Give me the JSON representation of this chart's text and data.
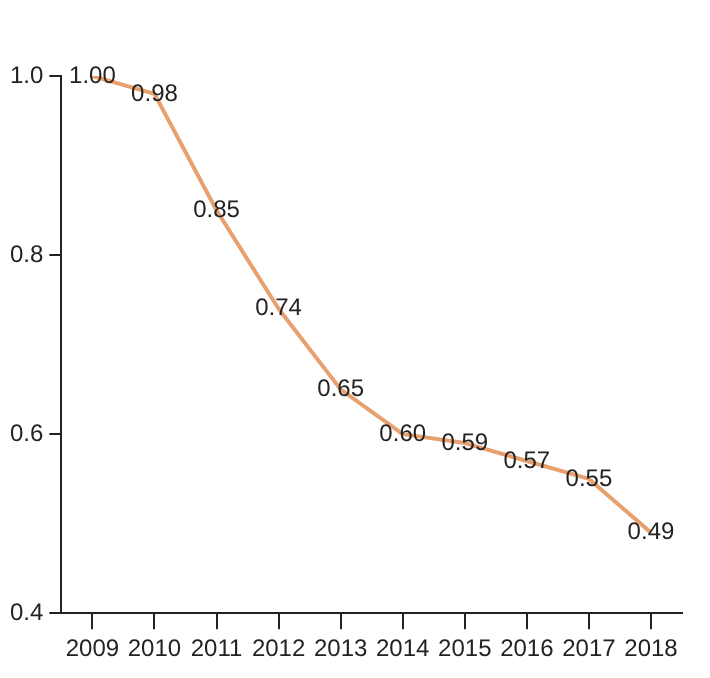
{
  "chart_data": {
    "type": "line",
    "categories": [
      "2009",
      "2010",
      "2011",
      "2012",
      "2013",
      "2014",
      "2015",
      "2016",
      "2017",
      "2018"
    ],
    "series": [
      {
        "color": "#e8a06e",
        "values": [
          1.0,
          0.98,
          0.85,
          0.74,
          0.65,
          0.6,
          0.59,
          0.57,
          0.55,
          0.49
        ],
        "value_labels": [
          "1.00",
          "0.98",
          "0.85",
          "0.74",
          "0.65",
          "0.60",
          "0.59",
          "0.57",
          "0.55",
          "0.49"
        ]
      }
    ],
    "ylim": [
      0.4,
      1.0
    ],
    "yticks": [
      {
        "value": 0.4,
        "label": "0.4"
      },
      {
        "value": 0.6,
        "label": "0.6"
      },
      {
        "value": 0.8,
        "label": "0.8"
      },
      {
        "value": 1.0,
        "label": "1.0"
      }
    ],
    "grid": false,
    "legend": false,
    "marker": "none",
    "line_style": "solid"
  }
}
